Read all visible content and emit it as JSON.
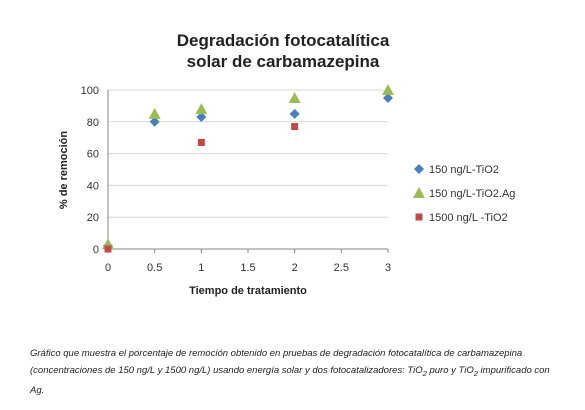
{
  "chart_data": {
    "type": "scatter",
    "title_lines": [
      "Degradación fotocatalítica",
      "solar de carbamazepina"
    ],
    "xlabel": "Tiempo de tratamiento",
    "ylabel": "% de remoción",
    "xlim": [
      0,
      3
    ],
    "ylim": [
      0,
      100
    ],
    "x_ticks": [
      "0",
      "0.5",
      "1",
      "1.5",
      "2",
      "2.5",
      "3"
    ],
    "y_ticks": [
      "0",
      "20",
      "40",
      "60",
      "80",
      "100"
    ],
    "grid": "horizontal",
    "legend_position": "right",
    "series": [
      {
        "name": "150 ng/L-TiO2",
        "marker": "diamond",
        "color": "#4a7ebb",
        "points": [
          {
            "x": 0,
            "y": 2
          },
          {
            "x": 0.5,
            "y": 80
          },
          {
            "x": 1,
            "y": 83
          },
          {
            "x": 2,
            "y": 85
          },
          {
            "x": 3,
            "y": 95
          }
        ]
      },
      {
        "name": "150 ng/L-TiO2.Ag",
        "marker": "triangle",
        "color": "#9bbb59",
        "points": [
          {
            "x": 0,
            "y": 3
          },
          {
            "x": 0.5,
            "y": 85
          },
          {
            "x": 1,
            "y": 88
          },
          {
            "x": 2,
            "y": 95
          },
          {
            "x": 3,
            "y": 100
          }
        ]
      },
      {
        "name": "1500 ng/L -TiO2",
        "marker": "square",
        "color": "#be4b48",
        "points": [
          {
            "x": 0,
            "y": 0
          },
          {
            "x": 1,
            "y": 67
          },
          {
            "x": 2,
            "y": 77
          }
        ]
      }
    ]
  },
  "caption": {
    "part1": "Gráfico que muestra el porcentaje de remoción obtenido en pruebas de degradación fotocatalítica de carbamazepina (concentraciones de 150 ng/L y 1500 ng/L) usando  energía solar y dos fotocatalizadores: TiO",
    "sub1": "2",
    "part2": " puro y TiO",
    "sub2": "2",
    "part3": " impurificado con Ag."
  }
}
